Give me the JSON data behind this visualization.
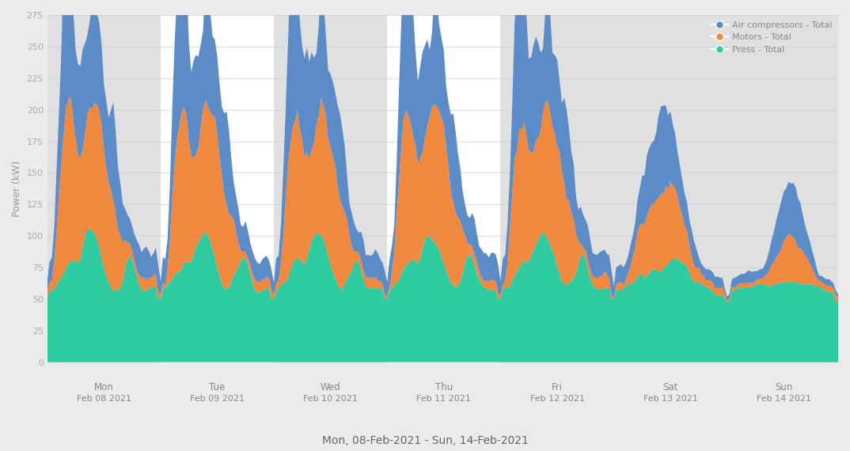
{
  "title": "Mon, 08-Feb-2021 - Sun, 14-Feb-2021",
  "ylabel": "Power (kW)",
  "fig_bg_color": "#ebebeb",
  "plot_bg_color": "#ffffff",
  "stripe_color": "#e0e0e0",
  "colors": {
    "air": "#5b8cc8",
    "motors": "#f0883e",
    "press": "#2ecba1"
  },
  "legend_labels": [
    "Air compressors - Total",
    "Motors - Total",
    "Press - Total"
  ],
  "ylim": [
    0,
    275
  ],
  "yticks": [
    0,
    25,
    50,
    75,
    100,
    125,
    150,
    175,
    200,
    225,
    250,
    275
  ],
  "day_names": [
    "Mon",
    "Tue",
    "Wed",
    "Thu",
    "Fri",
    "Sat",
    "Sun"
  ],
  "date_names": [
    "Feb 08 2021",
    "Feb 09 2021",
    "Feb 10 2021",
    "Feb 11 2021",
    "Feb 12 2021",
    "Feb 13 2021",
    "Feb 14 2021"
  ],
  "n_points": 336,
  "pts_per_day": 48,
  "stripe_days": [
    0,
    2,
    4,
    5,
    6
  ]
}
